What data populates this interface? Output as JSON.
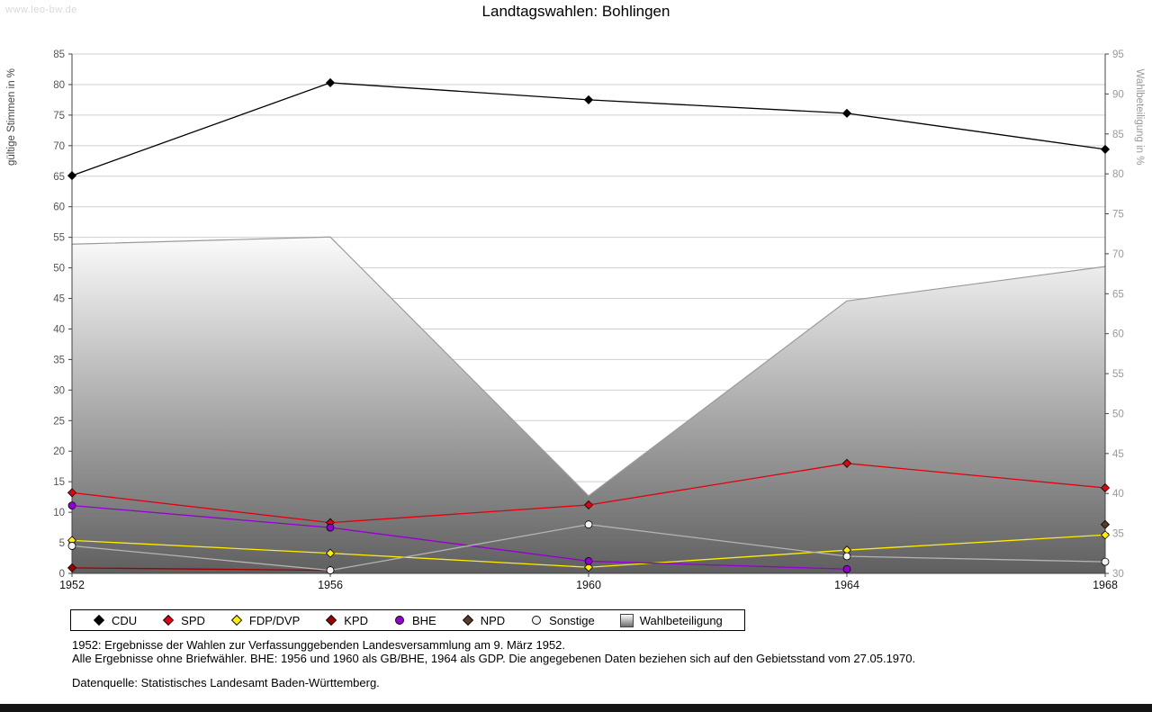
{
  "page": {
    "watermark": "www.leo-bw.de",
    "title": "Landtagswahlen: Bohlingen"
  },
  "chart_data": {
    "type": "line",
    "title": "Landtagswahlen: Bohlingen",
    "x_categories": [
      "1952",
      "1956",
      "1960",
      "1964",
      "1968"
    ],
    "left_axis": {
      "label": "gültige Stimmen in %",
      "min": 0,
      "max": 85,
      "tick_step": 5
    },
    "right_axis": {
      "label": "Wahlbeteiligung in %",
      "min": 30,
      "max": 95,
      "tick_step": 5
    },
    "grid": "horizontal",
    "legend_position": "bottom",
    "series": [
      {
        "name": "CDU",
        "color": "#000000",
        "marker": "diamond",
        "values": [
          65.1,
          80.3,
          77.5,
          75.3,
          69.4
        ]
      },
      {
        "name": "SPD",
        "color": "#e3000f",
        "marker": "diamond",
        "values": [
          13.2,
          8.3,
          11.2,
          18.0,
          14.0
        ]
      },
      {
        "name": "FDP/DVP",
        "color": "#ffee00",
        "marker": "diamond",
        "values": [
          5.4,
          3.3,
          1.0,
          3.8,
          6.3
        ]
      },
      {
        "name": "KPD",
        "color": "#a00000",
        "marker": "diamond",
        "values": [
          0.9,
          0.5,
          null,
          null,
          null
        ]
      },
      {
        "name": "BHE",
        "color": "#9400d3",
        "marker": "circle",
        "values": [
          11.1,
          7.5,
          2.0,
          0.7,
          null
        ]
      },
      {
        "name": "NPD",
        "color": "#5b3a29",
        "marker": "diamond",
        "values": [
          null,
          null,
          null,
          null,
          8.0
        ]
      },
      {
        "name": "Sonstige",
        "color": "#b4b4b4",
        "fill": "#f2f2f2",
        "marker": "circle",
        "values": [
          4.5,
          0.5,
          8.0,
          2.8,
          1.9
        ]
      }
    ],
    "turnout_area": {
      "name": "Wahlbeteiligung",
      "axis": "right",
      "values": [
        71.2,
        72.1,
        39.7,
        64.1,
        68.4
      ],
      "stroke": "#9a9a9a",
      "gradient_top": "#fbfbfb",
      "gradient_bottom": "#5f5f5f"
    }
  },
  "footnotes": {
    "line1": "1952: Ergebnisse der Wahlen zur Verfassunggebenden Landesversammlung am 9. März 1952.",
    "line2": "Alle Ergebnisse ohne Briefwähler. BHE: 1956 und 1960 als GB/BHE, 1964 als GDP. Die angegebenen Daten beziehen sich auf den Gebietsstand vom 27.05.1970.",
    "source": "Datenquelle: Statistisches Landesamt Baden-Württemberg."
  }
}
